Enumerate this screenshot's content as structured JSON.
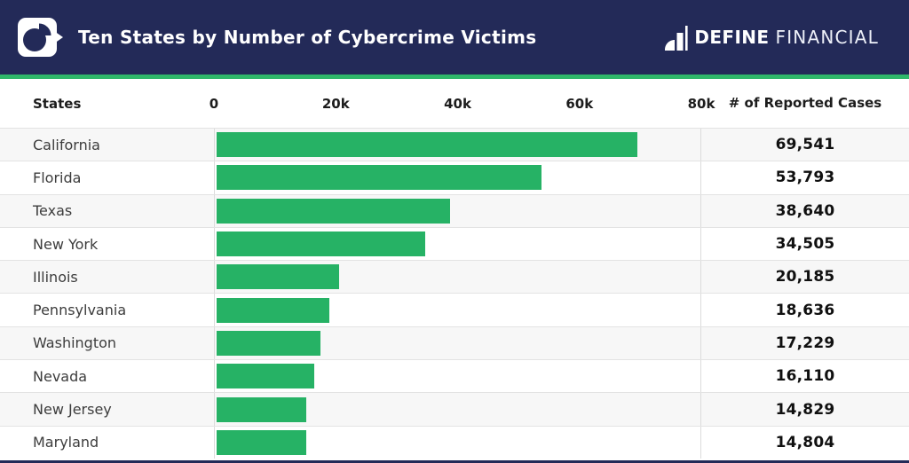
{
  "colors": {
    "navy": "#232A58",
    "green": "#26B265",
    "accent_line": "#2FB76A"
  },
  "header": {
    "title": "Ten States by Number of Cybercrime Victims",
    "brand_bold": "DEFINE",
    "brand_light": "FINANCIAL"
  },
  "table": {
    "col_states": "States",
    "col_cases": "# of Reported Cases"
  },
  "chart_data": {
    "type": "bar",
    "orientation": "horizontal",
    "title": "Ten States by Number of Cybercrime Victims",
    "categories": [
      "California",
      "Florida",
      "Texas",
      "New York",
      "Illinois",
      "Pennsylvania",
      "Washington",
      "Nevada",
      "New Jersey",
      "Maryland"
    ],
    "values": [
      69541,
      53793,
      38640,
      34505,
      20185,
      18636,
      17229,
      16110,
      14829,
      14804
    ],
    "value_labels": [
      "69,541",
      "53,793",
      "38,640",
      "34,505",
      "20,185",
      "18,636",
      "17,229",
      "16,110",
      "14,829",
      "14,804"
    ],
    "x_ticks": [
      "0",
      "20k",
      "40k",
      "60k",
      "80k"
    ],
    "xlim": [
      0,
      80000
    ],
    "xlabel": "",
    "ylabel": "States",
    "bar_color": "#26B265",
    "grid": false,
    "legend": false
  }
}
